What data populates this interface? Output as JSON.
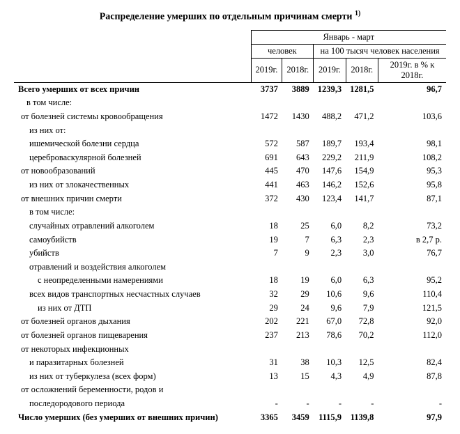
{
  "title": "Распределение умерших по отдельным причинам смерти",
  "title_sup": "1)",
  "period_header": "Январь - март",
  "group_persons": "человек",
  "group_per100k": "на 100 тысяч человек населения",
  "col_2019": "2019г.",
  "col_2018": "2018г.",
  "col_pct": "2019г. в % к  2018г.",
  "rows": [
    {
      "label": "Всего умерших от всех причин",
      "bold": true,
      "cls": "",
      "c1": "3737",
      "c2": "3889",
      "c3": "1239,3",
      "c4": "1281,5",
      "c5": "96,7"
    },
    {
      "label": "в том числе:",
      "cls": "ind1",
      "c1": "",
      "c2": "",
      "c3": "",
      "c4": "",
      "c5": ""
    },
    {
      "label": "от болезней системы кровообращения",
      "cls": "ind2",
      "c1": "1472",
      "c2": "1430",
      "c3": "488,2",
      "c4": "471,2",
      "c5": "103,6"
    },
    {
      "label": "из них от:",
      "cls": "ind3",
      "c1": "",
      "c2": "",
      "c3": "",
      "c4": "",
      "c5": ""
    },
    {
      "label": "ишемической болезни сердца",
      "cls": "ind3",
      "c1": "572",
      "c2": "587",
      "c3": "189,7",
      "c4": "193,4",
      "c5": "98,1"
    },
    {
      "label": "цереброваскулярной болезней",
      "cls": "ind3",
      "c1": "691",
      "c2": "643",
      "c3": "229,2",
      "c4": "211,9",
      "c5": "108,2"
    },
    {
      "label": "от новообразований",
      "cls": "ind2",
      "c1": "445",
      "c2": "470",
      "c3": "147,6",
      "c4": "154,9",
      "c5": "95,3"
    },
    {
      "label": "из них от злокачественных",
      "cls": "ind3",
      "c1": "441",
      "c2": "463",
      "c3": "146,2",
      "c4": "152,6",
      "c5": "95,8"
    },
    {
      "label": "от внешних причин смерти",
      "cls": "ind2",
      "c1": "372",
      "c2": "430",
      "c3": "123,4",
      "c4": "141,7",
      "c5": "87,1"
    },
    {
      "label": "в том числе:",
      "cls": "ind3",
      "c1": "",
      "c2": "",
      "c3": "",
      "c4": "",
      "c5": ""
    },
    {
      "label": "случайных отравлений алкоголем",
      "cls": "ind3",
      "c1": "18",
      "c2": "25",
      "c3": "6,0",
      "c4": "8,2",
      "c5": "73,2"
    },
    {
      "label": "самоубийств",
      "cls": "ind3",
      "c1": "19",
      "c2": "7",
      "c3": "6,3",
      "c4": "2,3",
      "c5": "в 2,7 р."
    },
    {
      "label": "убийств",
      "cls": "ind3",
      "c1": "7",
      "c2": "9",
      "c3": "2,3",
      "c4": "3,0",
      "c5": "76,7"
    },
    {
      "label": "отравлений и воздействия алкоголем",
      "cls": "ind3",
      "c1": "",
      "c2": "",
      "c3": "",
      "c4": "",
      "c5": ""
    },
    {
      "label": "с неопределенными намерениями",
      "cls": "ind4",
      "c1": "18",
      "c2": "19",
      "c3": "6,0",
      "c4": "6,3",
      "c5": "95,2"
    },
    {
      "label": "всех видов транспортных несчастных случаев",
      "cls": "ind3",
      "c1": "32",
      "c2": "29",
      "c3": "10,6",
      "c4": "9,6",
      "c5": "110,4"
    },
    {
      "label": "из них от  ДТП",
      "cls": "ind4",
      "c1": "29",
      "c2": "24",
      "c3": "9,6",
      "c4": "7,9",
      "c5": "121,5"
    },
    {
      "label": "от болезней органов дыхания",
      "cls": "ind2",
      "c1": "202",
      "c2": "221",
      "c3": "67,0",
      "c4": "72,8",
      "c5": "92,0"
    },
    {
      "label": "от болезней органов пищеварения",
      "cls": "ind2",
      "c1": "237",
      "c2": "213",
      "c3": "78,6",
      "c4": "70,2",
      "c5": "112,0"
    },
    {
      "label": "от некоторых инфекционных",
      "cls": "ind2",
      "c1": "",
      "c2": "",
      "c3": "",
      "c4": "",
      "c5": ""
    },
    {
      "label": "и паразитарных болезней",
      "cls": "ind3",
      "c1": "31",
      "c2": "38",
      "c3": "10,3",
      "c4": "12,5",
      "c5": "82,4"
    },
    {
      "label": "из них от  туберкулеза  (всех  форм)",
      "cls": "ind3",
      "c1": "13",
      "c2": "15",
      "c3": "4,3",
      "c4": "4,9",
      "c5": "87,8"
    },
    {
      "label": "от осложнений беременности,  родов и",
      "cls": "ind2",
      "c1": "",
      "c2": "",
      "c3": "",
      "c4": "",
      "c5": ""
    },
    {
      "label": "последородового периода",
      "cls": "ind3",
      "c1": "-",
      "c2": "-",
      "c3": "-",
      "c4": "-",
      "c5": "-"
    },
    {
      "label": "Число умерших (без умерших от внешних причин)",
      "bold": true,
      "cls": "",
      "c1": "3365",
      "c2": "3459",
      "c3": "1115,9",
      "c4": "1139,8",
      "c5": "97,9"
    }
  ]
}
